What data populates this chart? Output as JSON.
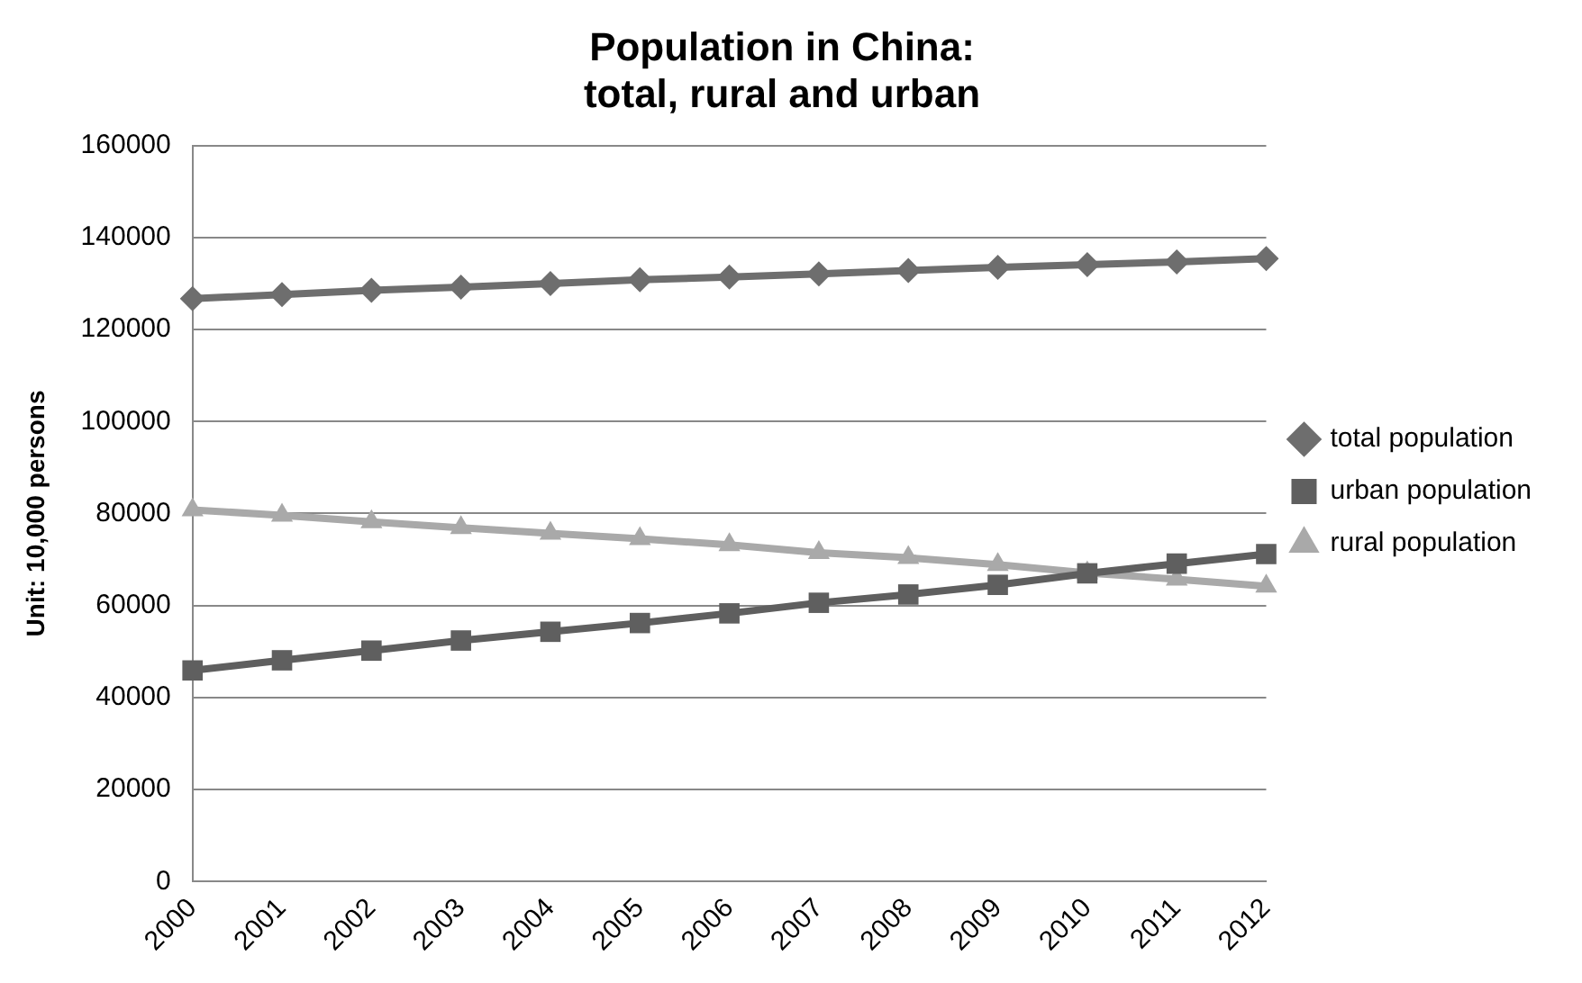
{
  "chart_data": {
    "type": "line",
    "title": "Population in China:\ntotal, rural and urban",
    "ylabel": "Unit: 10,000 persons",
    "categories": [
      "2000",
      "2001",
      "2002",
      "2003",
      "2004",
      "2005",
      "2006",
      "2007",
      "2008",
      "2009",
      "2010",
      "2011",
      "2012"
    ],
    "series": [
      {
        "name": "total population",
        "color": "#6e6e6e",
        "marker": "diamond",
        "values": [
          126700,
          127600,
          128500,
          129200,
          130000,
          130800,
          131400,
          132100,
          132800,
          133500,
          134100,
          134700,
          135400
        ]
      },
      {
        "name": "urban population",
        "color": "#5f5f5f",
        "marker": "square",
        "values": [
          45900,
          48100,
          50200,
          52400,
          54300,
          56200,
          58300,
          60600,
          62400,
          64500,
          67000,
          69100,
          71200
        ]
      },
      {
        "name": "rural population",
        "color": "#a9a9a9",
        "marker": "triangle",
        "values": [
          80800,
          79600,
          78200,
          76900,
          75700,
          74500,
          73200,
          71500,
          70400,
          68900,
          67100,
          65700,
          64200
        ]
      }
    ],
    "ylim": [
      0,
      160000
    ],
    "yticks": [
      0,
      20000,
      40000,
      60000,
      80000,
      100000,
      120000,
      140000,
      160000
    ],
    "grid": "y",
    "legend": "right",
    "line_style": "solid"
  }
}
